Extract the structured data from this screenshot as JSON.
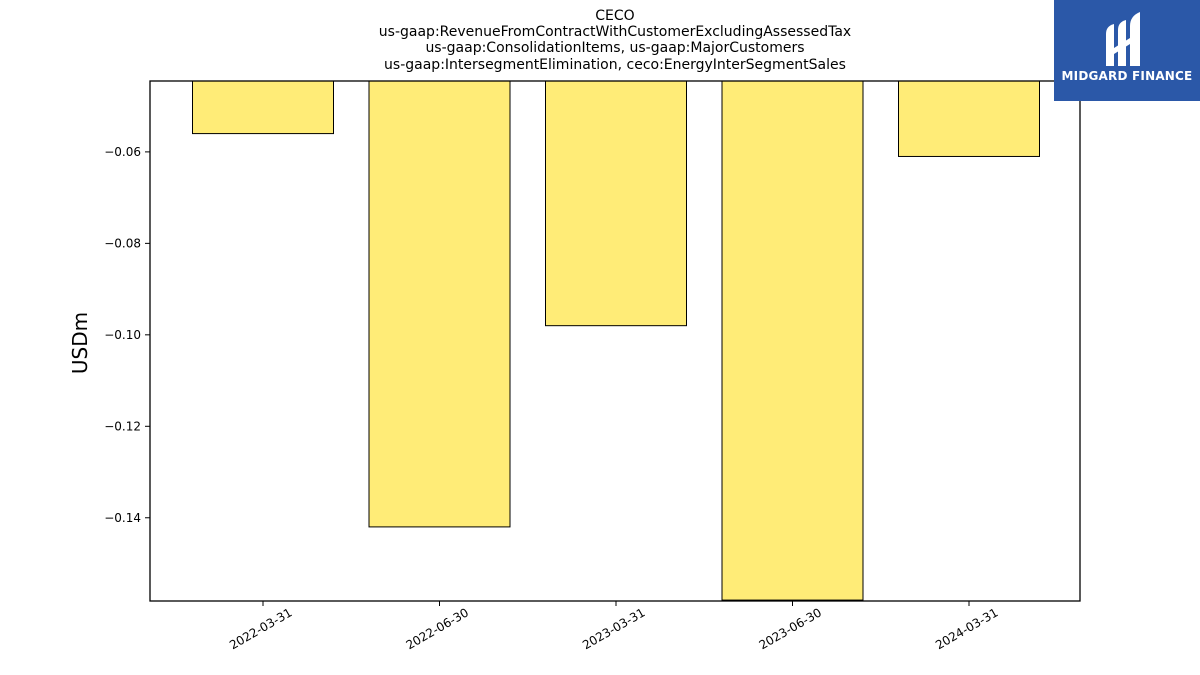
{
  "chart_data": {
    "type": "bar",
    "title_lines": [
      "CECO",
      "us-gaap:RevenueFromContractWithCustomerExcludingAssessedTax",
      "us-gaap:ConsolidationItems, us-gaap:MajorCustomers",
      "us-gaap:IntersegmentElimination, ceco:EnergyInterSegmentSales"
    ],
    "categories": [
      "2022-03-31",
      "2022-06-30",
      "2023-03-31",
      "2023-06-30",
      "2024-03-31"
    ],
    "values": [
      -0.056,
      -0.142,
      -0.098,
      -0.158,
      -0.061
    ],
    "ylabel": "USDm",
    "ylim": [
      -0.1582,
      -0.0445
    ],
    "yticks": [
      -0.06,
      -0.08,
      -0.1,
      -0.12,
      -0.14
    ],
    "ytick_labels": [
      "−0.06",
      "−0.08",
      "−0.10",
      "−0.12",
      "−0.14"
    ],
    "bar_color": "#ffec77",
    "bar_edge_color": "#000000",
    "grid": false
  },
  "logo": {
    "text": "MIDGARD FINANCE",
    "background": "#2b58a8"
  }
}
